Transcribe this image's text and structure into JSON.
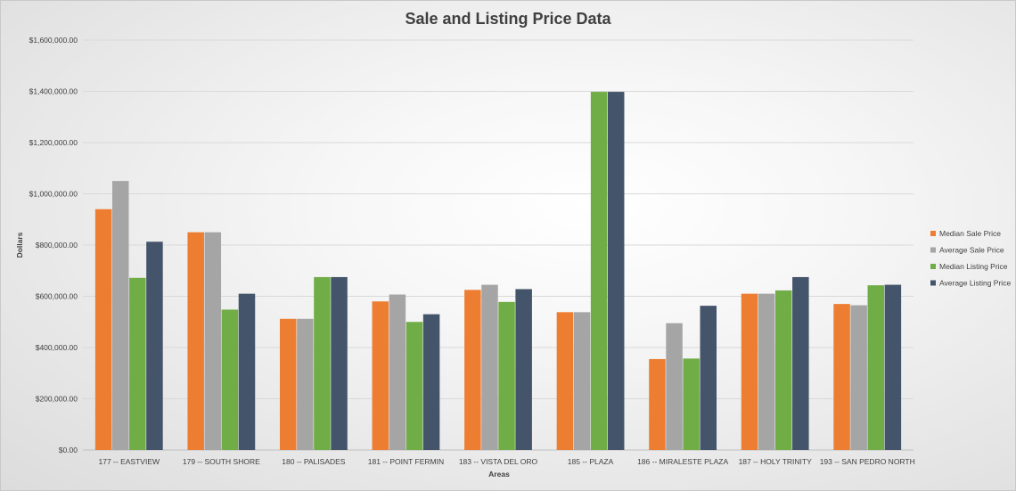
{
  "chart_data": {
    "type": "bar",
    "title": "Sale and Listing Price Data",
    "xlabel": "Areas",
    "ylabel": "Dollars",
    "ylim": [
      0,
      1600000
    ],
    "y_ticks": [
      0,
      200000,
      400000,
      600000,
      800000,
      1000000,
      1200000,
      1400000,
      1600000
    ],
    "y_tick_labels": [
      "$0.00",
      "$200,000.00",
      "$400,000.00",
      "$600,000.00",
      "$800,000.00",
      "$1,000,000.00",
      "$1,200,000.00",
      "$1,400,000.00",
      "$1,600,000.00"
    ],
    "grid": true,
    "legend_position": "right",
    "categories": [
      "177 -- EASTVIEW",
      "179 -- SOUTH SHORE",
      "180 -- PALISADES",
      "181 -- POINT FERMIN",
      "183 -- VISTA DEL ORO",
      "185 -- PLAZA",
      "186 -- MIRALESTE PLAZA",
      "187 -- HOLY TRINITY",
      "193 -- SAN PEDRO NORTH"
    ],
    "series": [
      {
        "name": "Median Sale Price",
        "color": "#ED7D31",
        "values": [
          940000,
          850000,
          512000,
          580000,
          625000,
          538000,
          355000,
          610000,
          570000
        ]
      },
      {
        "name": "Average Sale Price",
        "color": "#A5A5A5",
        "values": [
          1050000,
          850000,
          512000,
          607000,
          645000,
          538000,
          495000,
          610000,
          565000
        ]
      },
      {
        "name": "Median Listing Price",
        "color": "#70AD47",
        "values": [
          672000,
          548000,
          675000,
          500000,
          578000,
          1398000,
          357000,
          623000,
          643000
        ]
      },
      {
        "name": "Average Listing Price",
        "color": "#44546A",
        "values": [
          813000,
          610000,
          675000,
          530000,
          628000,
          1398000,
          563000,
          675000,
          645000
        ]
      }
    ]
  }
}
